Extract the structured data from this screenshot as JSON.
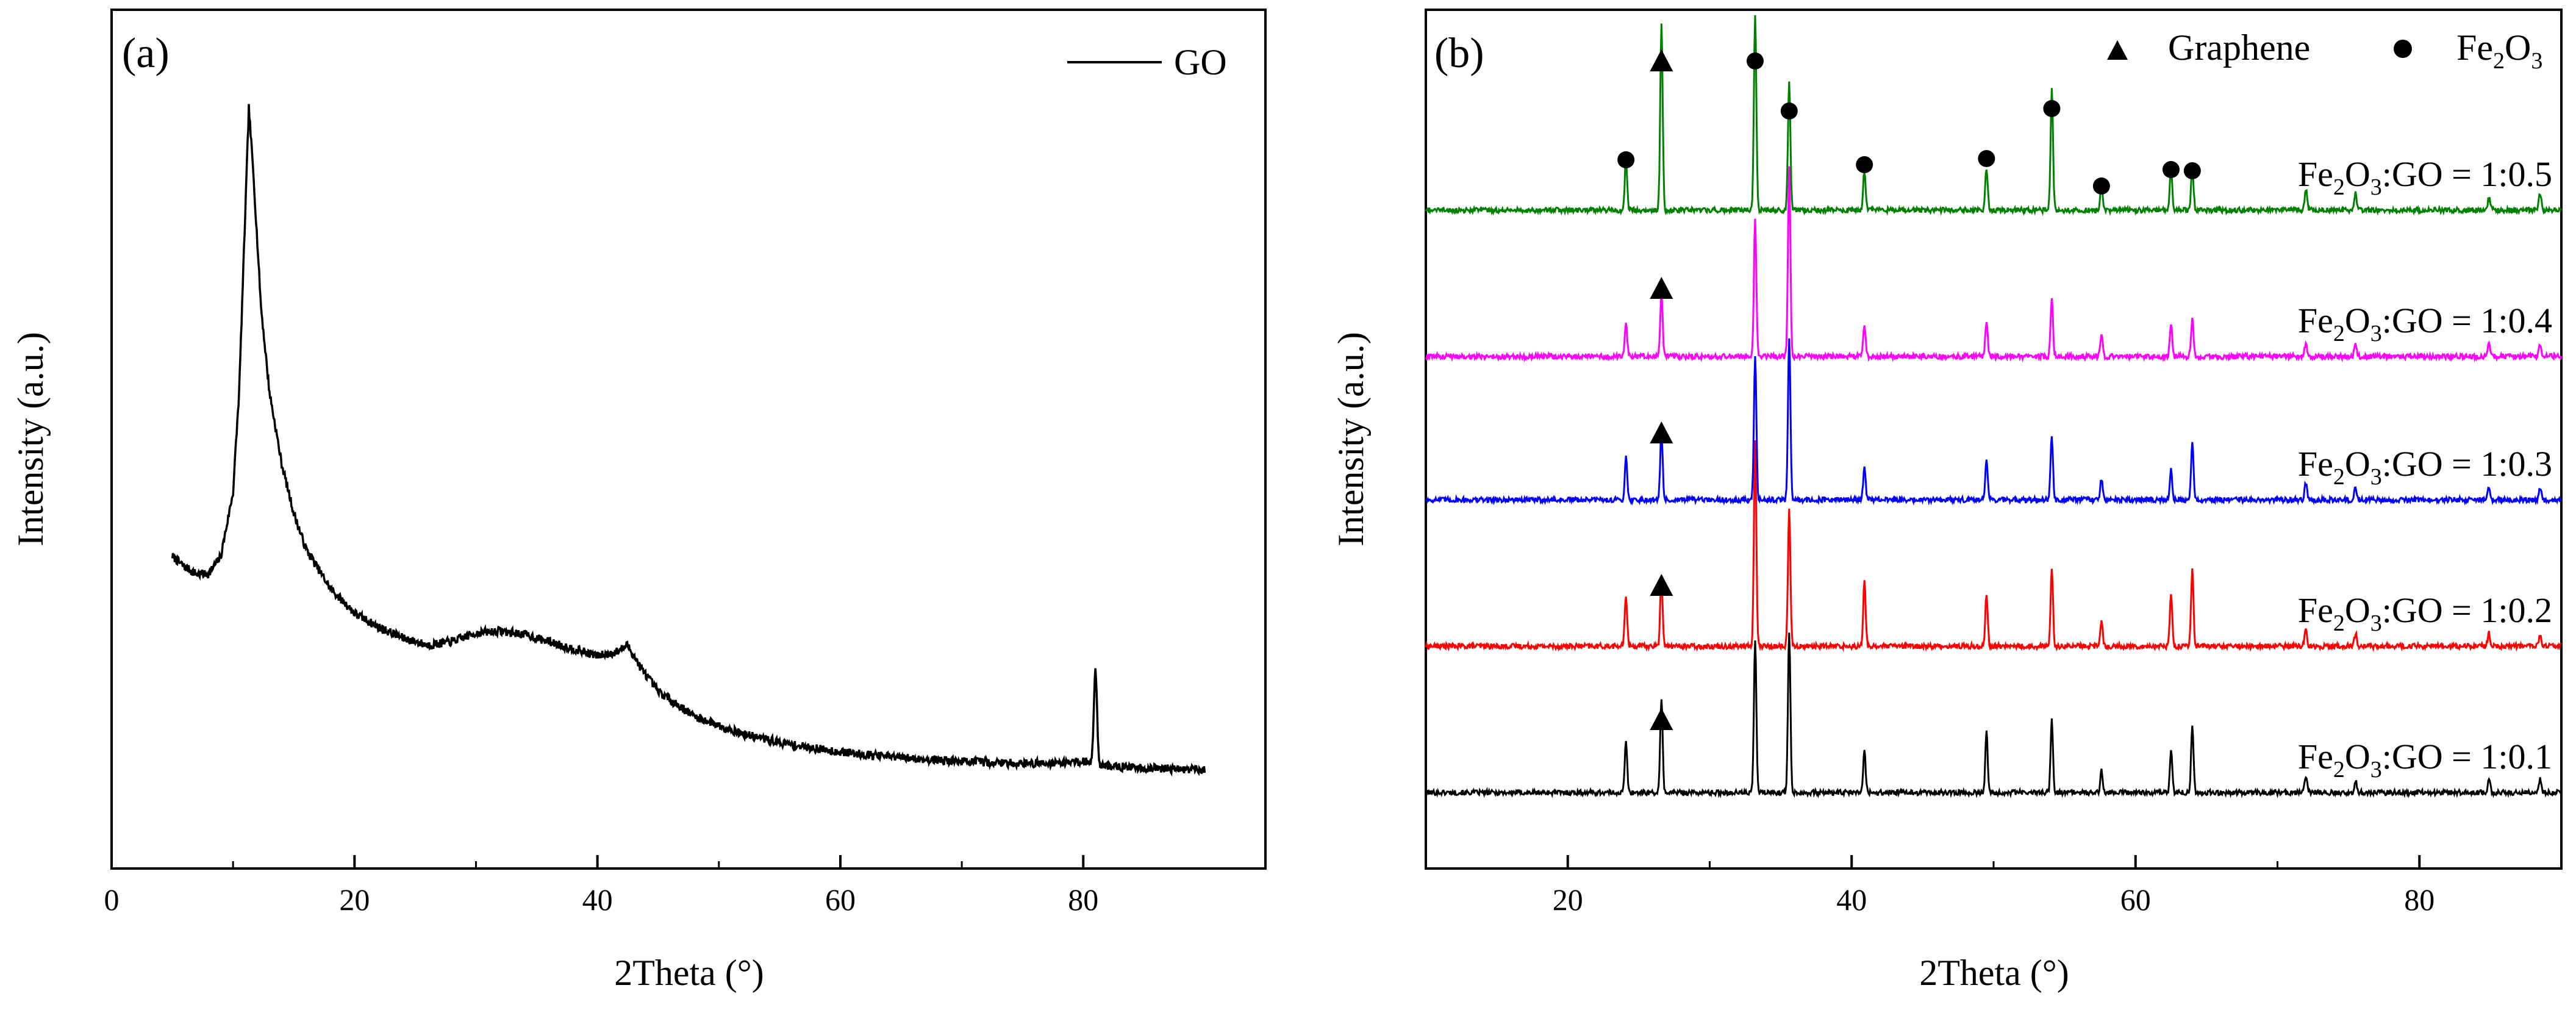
{
  "chart_data": [
    {
      "type": "line",
      "panel": "(a)",
      "xlabel": "2Theta (°)",
      "ylabel": "Intensity (a.u.)",
      "xlim": [
        0,
        95
      ],
      "xticks": [
        "0",
        "20",
        "40",
        "60",
        "80"
      ],
      "legend": {
        "position": "top-right",
        "entries": [
          "GO"
        ]
      },
      "series": [
        {
          "name": "GO",
          "color": "#000000",
          "baseline_points": [
            [
              5,
              0.37
            ],
            [
              6,
              0.355
            ],
            [
              7,
              0.345
            ],
            [
              8,
              0.345
            ],
            [
              9,
              0.37
            ],
            [
              10,
              0.46
            ],
            [
              10.5,
              0.6
            ],
            [
              11,
              0.85
            ],
            [
              11.3,
              1.0
            ],
            [
              11.7,
              0.9
            ],
            [
              12.3,
              0.72
            ],
            [
              13,
              0.6
            ],
            [
              14,
              0.5
            ],
            [
              15,
              0.43
            ],
            [
              16,
              0.38
            ],
            [
              18,
              0.325
            ],
            [
              20,
              0.29
            ],
            [
              22,
              0.27
            ],
            [
              24,
              0.255
            ],
            [
              26,
              0.245
            ],
            [
              28,
              0.25
            ],
            [
              30,
              0.262
            ],
            [
              32,
              0.265
            ],
            [
              34,
              0.26
            ],
            [
              36,
              0.25
            ],
            [
              38,
              0.24
            ],
            [
              40,
              0.23
            ],
            [
              41.5,
              0.235
            ],
            [
              42.5,
              0.245
            ],
            [
              43.5,
              0.215
            ],
            [
              45,
              0.18
            ],
            [
              48,
              0.145
            ],
            [
              52,
              0.12
            ],
            [
              56,
              0.105
            ],
            [
              60,
              0.095
            ],
            [
              65,
              0.087
            ],
            [
              70,
              0.082
            ],
            [
              75,
              0.079
            ],
            [
              78,
              0.08
            ],
            [
              80,
              0.082
            ],
            [
              82,
              0.075
            ],
            [
              86,
              0.072
            ],
            [
              90,
              0.07
            ]
          ],
          "peaks": [
            {
              "x": 81.0,
              "y": 0.21
            }
          ]
        }
      ]
    },
    {
      "type": "line",
      "panel": "(b)",
      "xlabel": "2Theta (°)",
      "ylabel": "Intensity (a.u.)",
      "xlim": [
        10,
        90
      ],
      "xticks": [
        "20",
        "40",
        "60",
        "80"
      ],
      "legend": {
        "position": "top-right",
        "entries": [
          {
            "marker": "triangle",
            "label": "Graphene"
          },
          {
            "marker": "circle",
            "label_main": "Fe",
            "sub1": "2",
            "label_mid": "O",
            "sub2": "3"
          }
        ]
      },
      "series": [
        {
          "name": "Fe2O3:GO = 1:0.1",
          "label_main": "Fe",
          "sub1": "2",
          "label_rest": "O",
          "sub2": "3",
          "label_tail": ":GO = 1:0.1",
          "color": "#000000",
          "offset": 0,
          "peaks": [
            [
              24.1,
              0.12
            ],
            [
              26.6,
              0.22
            ],
            [
              33.2,
              0.36
            ],
            [
              35.6,
              0.38
            ],
            [
              40.9,
              0.1
            ],
            [
              49.5,
              0.14
            ],
            [
              54.1,
              0.17
            ],
            [
              57.6,
              0.05
            ],
            [
              62.5,
              0.1
            ],
            [
              64.0,
              0.16
            ],
            [
              72.0,
              0.04
            ],
            [
              75.5,
              0.03
            ],
            [
              84.9,
              0.03
            ],
            [
              88.5,
              0.03
            ]
          ]
        },
        {
          "name": "Fe2O3:GO = 1:0.2",
          "label_main": "Fe",
          "sub1": "2",
          "label_rest": "O",
          "sub2": "3",
          "label_tail": ":GO = 1:0.2",
          "color": "#ff0000",
          "offset": 1,
          "peaks": [
            [
              24.1,
              0.12
            ],
            [
              26.6,
              0.16
            ],
            [
              33.2,
              0.48
            ],
            [
              35.6,
              0.32
            ],
            [
              40.9,
              0.15
            ],
            [
              49.5,
              0.12
            ],
            [
              54.1,
              0.18
            ],
            [
              57.6,
              0.06
            ],
            [
              62.5,
              0.12
            ],
            [
              64.0,
              0.18
            ],
            [
              72.0,
              0.04
            ],
            [
              75.5,
              0.03
            ],
            [
              84.9,
              0.03
            ],
            [
              88.5,
              0.03
            ]
          ]
        },
        {
          "name": "Fe2O3:GO = 1:0.3",
          "label_main": "Fe",
          "sub1": "2",
          "label_rest": "O",
          "sub2": "3",
          "label_tail": ":GO = 1:0.3",
          "color": "#0000ff",
          "offset": 2,
          "peaks": [
            [
              24.1,
              0.1
            ],
            [
              26.6,
              0.16
            ],
            [
              33.2,
              0.34
            ],
            [
              35.6,
              0.38
            ],
            [
              40.9,
              0.08
            ],
            [
              49.5,
              0.1
            ],
            [
              54.1,
              0.15
            ],
            [
              57.6,
              0.05
            ],
            [
              62.5,
              0.07
            ],
            [
              64.0,
              0.14
            ],
            [
              72.0,
              0.04
            ],
            [
              75.5,
              0.03
            ],
            [
              84.9,
              0.03
            ],
            [
              88.5,
              0.03
            ]
          ]
        },
        {
          "name": "Fe2O3:GO = 1:0.4",
          "label_main": "Fe",
          "sub1": "2",
          "label_rest": "O",
          "sub2": "3",
          "label_tail": ":GO = 1:0.4",
          "color": "#ff00ff",
          "offset": 3,
          "peaks": [
            [
              24.1,
              0.08
            ],
            [
              26.6,
              0.15
            ],
            [
              33.2,
              0.32
            ],
            [
              35.6,
              0.44
            ],
            [
              40.9,
              0.07
            ],
            [
              49.5,
              0.08
            ],
            [
              54.1,
              0.14
            ],
            [
              57.6,
              0.05
            ],
            [
              62.5,
              0.08
            ],
            [
              64.0,
              0.09
            ],
            [
              72.0,
              0.03
            ],
            [
              75.5,
              0.03
            ],
            [
              84.9,
              0.03
            ],
            [
              88.5,
              0.03
            ]
          ]
        },
        {
          "name": "Fe2O3:GO = 1:0.5",
          "label_main": "Fe",
          "sub1": "2",
          "label_rest": "O",
          "sub2": "3",
          "label_tail": ":GO = 1:0.5",
          "color": "#008000",
          "offset": 4,
          "peaks": [
            [
              24.1,
              0.12
            ],
            [
              26.6,
              0.44
            ],
            [
              33.2,
              0.46
            ],
            [
              35.6,
              0.3
            ],
            [
              40.9,
              0.09
            ],
            [
              49.5,
              0.1
            ],
            [
              54.1,
              0.28
            ],
            [
              57.6,
              0.06
            ],
            [
              62.5,
              0.1
            ],
            [
              64.0,
              0.1
            ],
            [
              72.0,
              0.05
            ],
            [
              75.5,
              0.04
            ],
            [
              84.9,
              0.03
            ],
            [
              88.5,
              0.04
            ]
          ]
        }
      ],
      "markers": {
        "triangle_x": [
          26.6
        ],
        "circle_x_top": [
          24.1,
          33.2,
          35.6,
          40.9,
          49.5,
          54.1,
          57.6,
          62.5,
          64.0
        ]
      }
    }
  ]
}
